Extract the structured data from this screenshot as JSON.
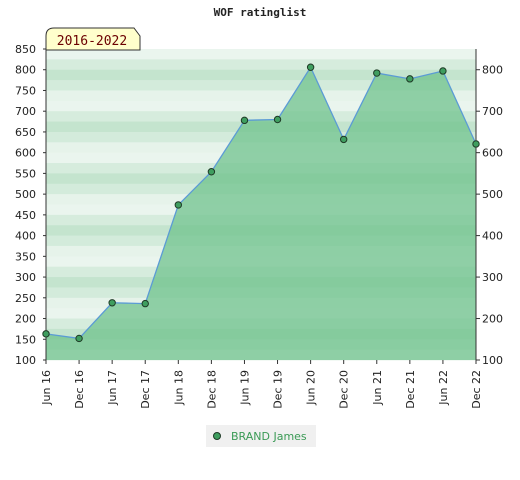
{
  "chart_data": {
    "type": "area",
    "title": "WOF ratinglist",
    "badge": "2016-2022",
    "categories": [
      "Jun 16",
      "Dec 16",
      "Jun 17",
      "Dec 17",
      "Jun 18",
      "Dec 18",
      "Jun 19",
      "Dec 19",
      "Jun 20",
      "Dec 20",
      "Jun 21",
      "Dec 21",
      "Jun 22",
      "Dec 22"
    ],
    "series": [
      {
        "name": "BRAND James",
        "values": [
          163,
          152,
          238,
          236,
          474,
          554,
          678,
          680,
          806,
          632,
          792,
          778,
          797,
          621
        ]
      }
    ],
    "ylim": [
      100,
      850
    ],
    "left_yticks": [
      100,
      150,
      200,
      250,
      300,
      350,
      400,
      450,
      500,
      550,
      600,
      650,
      700,
      750,
      800,
      850
    ],
    "right_yticks": [
      100,
      200,
      300,
      400,
      500,
      600,
      700,
      800
    ],
    "grid": true,
    "legend": "bottom",
    "colors": {
      "line": "#5b9bd5",
      "area": "#6cc08b",
      "marker": "#3f9e5f",
      "legend_text": "#3a9a55",
      "badge_bg": "#ffffcc",
      "badge_text": "#6b0000"
    }
  }
}
